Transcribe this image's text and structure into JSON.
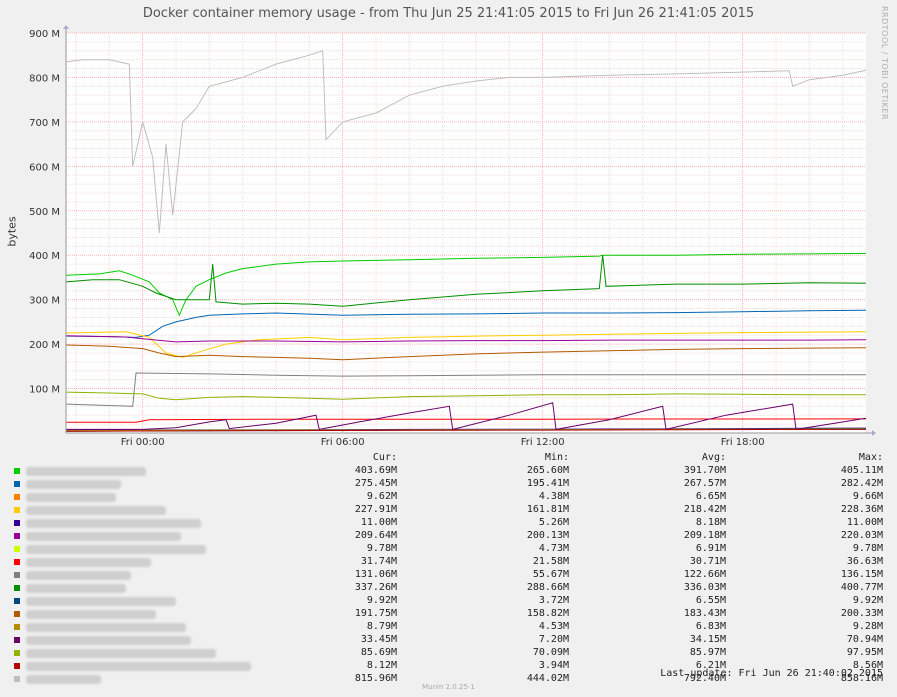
{
  "title": "Docker container memory usage - from Thu Jun 25 21:41:05 2015 to Fri Jun 26 21:41:05 2015",
  "watermark": "RRDTOOL / TOBI OETIKER",
  "footer": "Munin 2.0.25-1",
  "last_update": "Last update:  Fri Jun 26 21:40:02 2015",
  "legend_headers": {
    "cur": "Cur:",
    "min": "Min:",
    "avg": "Avg:",
    "max": "Max:"
  },
  "chart_data": {
    "type": "line",
    "title": "Docker container memory usage - from Thu Jun 25 21:41:05 2015 to Fri Jun 26 21:41:05 2015",
    "xlabel": "",
    "ylabel": "bytes",
    "y_unit": "M",
    "ylim": [
      0,
      900
    ],
    "x_range_hours": [
      -2.3,
      21.7
    ],
    "grid": true,
    "x_ticks": [
      {
        "hour": 0,
        "label": "Fri 00:00"
      },
      {
        "hour": 6,
        "label": "Fri 06:00"
      },
      {
        "hour": 12,
        "label": "Fri 12:00"
      },
      {
        "hour": 18,
        "label": "Fri 18:00"
      }
    ],
    "y_ticks": [
      {
        "value": 100,
        "label": "100 M"
      },
      {
        "value": 200,
        "label": "200 M"
      },
      {
        "value": 300,
        "label": "300 M"
      },
      {
        "value": 400,
        "label": "400 M"
      },
      {
        "value": 500,
        "label": "500 M"
      },
      {
        "value": 600,
        "label": "600 M"
      },
      {
        "value": 700,
        "label": "700 M"
      },
      {
        "value": 800,
        "label": "800 M"
      },
      {
        "value": 900,
        "label": "900 M"
      }
    ],
    "series": [
      {
        "color": "#00cc00",
        "cur": "403.69M",
        "min": "265.60M",
        "avg": "391.70M",
        "max": "405.11M",
        "points": [
          [
            -2.3,
            355
          ],
          [
            -1.3,
            358
          ],
          [
            -0.7,
            365
          ],
          [
            -0.3,
            355
          ],
          [
            0.2,
            340
          ],
          [
            0.5,
            315
          ],
          [
            0.9,
            300
          ],
          [
            1.1,
            265
          ],
          [
            1.3,
            300
          ],
          [
            1.6,
            330
          ],
          [
            2.0,
            345
          ],
          [
            2.5,
            360
          ],
          [
            3,
            370
          ],
          [
            4,
            380
          ],
          [
            5,
            385
          ],
          [
            6,
            387
          ],
          [
            8,
            390
          ],
          [
            10,
            393
          ],
          [
            12,
            395
          ],
          [
            13.7,
            398
          ],
          [
            13.8,
            400
          ],
          [
            16,
            400
          ],
          [
            18,
            402
          ],
          [
            20,
            403
          ],
          [
            21.7,
            404
          ]
        ]
      },
      {
        "color": "#0066b3",
        "cur": "275.45M",
        "min": "195.41M",
        "avg": "267.57M",
        "max": "282.42M",
        "points": [
          [
            -2.3,
            218
          ],
          [
            -1,
            217
          ],
          [
            -0.2,
            215
          ],
          [
            0.2,
            220
          ],
          [
            0.6,
            240
          ],
          [
            1,
            250
          ],
          [
            1.6,
            260
          ],
          [
            2,
            265
          ],
          [
            3,
            268
          ],
          [
            4,
            270
          ],
          [
            6,
            265
          ],
          [
            8,
            267
          ],
          [
            10,
            268
          ],
          [
            12,
            270
          ],
          [
            14,
            270
          ],
          [
            16,
            271
          ],
          [
            18,
            273
          ],
          [
            20,
            275
          ],
          [
            21.7,
            276
          ]
        ]
      },
      {
        "color": "#ff8000",
        "cur": "9.62M",
        "min": "4.38M",
        "avg": "6.65M",
        "max": "9.66M",
        "points": [
          [
            -2.3,
            6
          ],
          [
            0,
            6
          ],
          [
            4,
            6.5
          ],
          [
            8,
            6.8
          ],
          [
            12,
            7
          ],
          [
            16,
            8
          ],
          [
            20,
            9
          ],
          [
            21.7,
            9.6
          ]
        ]
      },
      {
        "color": "#ffcc00",
        "cur": "227.91M",
        "min": "161.81M",
        "avg": "218.42M",
        "max": "228.36M",
        "points": [
          [
            -2.3,
            225
          ],
          [
            -0.5,
            228
          ],
          [
            0.2,
            215
          ],
          [
            0.7,
            180
          ],
          [
            1.2,
            170
          ],
          [
            1.8,
            185
          ],
          [
            2.5,
            200
          ],
          [
            3.5,
            210
          ],
          [
            5,
            215
          ],
          [
            6,
            210
          ],
          [
            8,
            215
          ],
          [
            10,
            218
          ],
          [
            12,
            220
          ],
          [
            14,
            222
          ],
          [
            16,
            224
          ],
          [
            18,
            226
          ],
          [
            20,
            227
          ],
          [
            21.7,
            228
          ]
        ]
      },
      {
        "color": "#330099",
        "cur": "11.00M",
        "min": "5.26M",
        "avg": "8.18M",
        "max": "11.00M",
        "points": [
          [
            -2.3,
            6
          ],
          [
            0,
            7
          ],
          [
            4,
            7.5
          ],
          [
            8,
            8
          ],
          [
            12,
            8.5
          ],
          [
            16,
            9.5
          ],
          [
            20,
            10.5
          ],
          [
            21.7,
            11
          ]
        ]
      },
      {
        "color": "#990099",
        "cur": "209.64M",
        "min": "200.13M",
        "avg": "209.18M",
        "max": "220.03M",
        "points": [
          [
            -2.3,
            219
          ],
          [
            -0.5,
            216
          ],
          [
            0.3,
            210
          ],
          [
            1,
            205
          ],
          [
            2,
            207
          ],
          [
            4,
            207
          ],
          [
            6,
            205
          ],
          [
            8,
            207
          ],
          [
            10,
            208
          ],
          [
            12,
            208
          ],
          [
            14,
            209
          ],
          [
            16,
            209
          ],
          [
            18,
            209
          ],
          [
            20,
            209
          ],
          [
            21.7,
            210
          ]
        ]
      },
      {
        "color": "#ccff00",
        "cur": "9.78M",
        "min": "4.73M",
        "avg": "6.91M",
        "max": "9.78M",
        "points": [
          [
            -2.3,
            5
          ],
          [
            0,
            6
          ],
          [
            4,
            6.5
          ],
          [
            8,
            7
          ],
          [
            12,
            7.5
          ],
          [
            16,
            8.5
          ],
          [
            20,
            9.5
          ],
          [
            21.7,
            9.8
          ]
        ]
      },
      {
        "color": "#ff0000",
        "cur": "31.74M",
        "min": "21.58M",
        "avg": "30.71M",
        "max": "36.63M",
        "points": [
          [
            -2.3,
            24
          ],
          [
            -0.2,
            24
          ],
          [
            0.2,
            30
          ],
          [
            4,
            31
          ],
          [
            8,
            31
          ],
          [
            12,
            31
          ],
          [
            16,
            31.5
          ],
          [
            21.7,
            31.7
          ]
        ]
      },
      {
        "color": "#808080",
        "cur": "131.06M",
        "min": "55.67M",
        "avg": "122.66M",
        "max": "136.15M",
        "points": [
          [
            -2.3,
            65
          ],
          [
            -0.3,
            60
          ],
          [
            -0.2,
            135
          ],
          [
            2,
            133
          ],
          [
            4,
            130
          ],
          [
            6,
            128
          ],
          [
            8,
            129
          ],
          [
            10,
            130
          ],
          [
            12,
            131
          ],
          [
            14,
            131
          ],
          [
            16,
            131
          ],
          [
            18,
            131
          ],
          [
            21.7,
            131
          ]
        ]
      },
      {
        "color": "#008f00",
        "cur": "337.26M",
        "min": "288.66M",
        "avg": "336.03M",
        "max": "400.77M",
        "points": [
          [
            -2.3,
            340
          ],
          [
            -1.5,
            345
          ],
          [
            -0.7,
            345
          ],
          [
            0,
            330
          ],
          [
            0.4,
            315
          ],
          [
            1,
            300
          ],
          [
            2,
            300
          ],
          [
            2.1,
            380
          ],
          [
            2.2,
            295
          ],
          [
            3,
            290
          ],
          [
            4,
            292
          ],
          [
            5,
            290
          ],
          [
            6,
            285
          ],
          [
            8,
            300
          ],
          [
            10,
            312
          ],
          [
            12,
            320
          ],
          [
            13.7,
            325
          ],
          [
            13.8,
            400
          ],
          [
            13.9,
            330
          ],
          [
            16,
            335
          ],
          [
            18,
            335
          ],
          [
            20,
            338
          ],
          [
            21.7,
            337
          ]
        ]
      },
      {
        "color": "#00487d",
        "cur": "9.92M",
        "min": "3.72M",
        "avg": "6.55M",
        "max": "9.92M",
        "points": [
          [
            -2.3,
            4
          ],
          [
            0,
            4.5
          ],
          [
            4,
            5.5
          ],
          [
            8,
            6.5
          ],
          [
            12,
            7
          ],
          [
            16,
            8
          ],
          [
            20,
            9.5
          ],
          [
            21.7,
            9.9
          ]
        ]
      },
      {
        "color": "#b35a00",
        "cur": "191.75M",
        "min": "158.82M",
        "avg": "183.43M",
        "max": "200.33M",
        "points": [
          [
            -2.3,
            198
          ],
          [
            -1,
            195
          ],
          [
            0,
            190
          ],
          [
            0.5,
            180
          ],
          [
            1,
            172
          ],
          [
            2,
            175
          ],
          [
            3,
            172
          ],
          [
            4,
            170
          ],
          [
            5,
            168
          ],
          [
            6,
            165
          ],
          [
            8,
            172
          ],
          [
            10,
            178
          ],
          [
            12,
            182
          ],
          [
            14,
            185
          ],
          [
            16,
            188
          ],
          [
            18,
            190
          ],
          [
            20,
            191
          ],
          [
            21.7,
            192
          ]
        ]
      },
      {
        "color": "#b38f00",
        "cur": "8.79M",
        "min": "4.53M",
        "avg": "6.83M",
        "max": "9.28M",
        "points": [
          [
            -2.3,
            5
          ],
          [
            0,
            5.5
          ],
          [
            4,
            6
          ],
          [
            8,
            6.5
          ],
          [
            12,
            7
          ],
          [
            16,
            8
          ],
          [
            20,
            8.5
          ],
          [
            21.7,
            8.8
          ]
        ]
      },
      {
        "color": "#6b006b",
        "cur": "33.45M",
        "min": "7.20M",
        "avg": "34.15M",
        "max": "70.94M",
        "points": [
          [
            -2.3,
            8
          ],
          [
            0,
            8
          ],
          [
            1,
            12
          ],
          [
            2,
            25
          ],
          [
            2.5,
            30
          ],
          [
            2.6,
            10
          ],
          [
            4,
            22
          ],
          [
            5.2,
            40
          ],
          [
            5.3,
            8
          ],
          [
            6.5,
            25
          ],
          [
            8,
            45
          ],
          [
            9.2,
            60
          ],
          [
            9.3,
            8
          ],
          [
            11,
            40
          ],
          [
            12.3,
            68
          ],
          [
            12.4,
            8
          ],
          [
            14,
            30
          ],
          [
            15.6,
            60
          ],
          [
            15.7,
            8
          ],
          [
            17.5,
            40
          ],
          [
            19.5,
            65
          ],
          [
            19.6,
            8
          ],
          [
            21.7,
            33
          ]
        ]
      },
      {
        "color": "#8fb300",
        "cur": "85.69M",
        "min": "70.09M",
        "avg": "85.97M",
        "max": "97.95M",
        "points": [
          [
            -2.3,
            92
          ],
          [
            -1,
            90
          ],
          [
            0,
            88
          ],
          [
            0.5,
            78
          ],
          [
            1,
            75
          ],
          [
            2,
            80
          ],
          [
            3,
            82
          ],
          [
            4,
            80
          ],
          [
            5,
            78
          ],
          [
            6,
            76
          ],
          [
            8,
            82
          ],
          [
            10,
            84
          ],
          [
            12,
            86
          ],
          [
            14,
            86
          ],
          [
            16,
            88
          ],
          [
            18,
            87
          ],
          [
            20,
            86
          ],
          [
            21.7,
            86
          ]
        ]
      },
      {
        "color": "#b30000",
        "cur": "8.12M",
        "min": "3.94M",
        "avg": "6.21M",
        "max": "8.56M",
        "points": [
          [
            -2.3,
            4
          ],
          [
            0,
            4.5
          ],
          [
            4,
            5.5
          ],
          [
            8,
            6
          ],
          [
            12,
            6.5
          ],
          [
            16,
            7.5
          ],
          [
            20,
            8
          ],
          [
            21.7,
            8.1
          ]
        ]
      },
      {
        "color": "#bebebe",
        "cur": "815.96M",
        "min": "444.02M",
        "avg": "792.40M",
        "max": "858.16M",
        "points": [
          [
            -2.3,
            835
          ],
          [
            -1.8,
            840
          ],
          [
            -1.0,
            840
          ],
          [
            -0.4,
            830
          ],
          [
            -0.3,
            600
          ],
          [
            0,
            700
          ],
          [
            0.3,
            620
          ],
          [
            0.5,
            450
          ],
          [
            0.7,
            650
          ],
          [
            0.9,
            490
          ],
          [
            1.2,
            700
          ],
          [
            1.6,
            730
          ],
          [
            2,
            780
          ],
          [
            2.5,
            790
          ],
          [
            3,
            800
          ],
          [
            4,
            830
          ],
          [
            5,
            850
          ],
          [
            5.4,
            860
          ],
          [
            5.5,
            660
          ],
          [
            6,
            700
          ],
          [
            7,
            720
          ],
          [
            8,
            760
          ],
          [
            9,
            780
          ],
          [
            10,
            792
          ],
          [
            11,
            800
          ],
          [
            12,
            800
          ],
          [
            14,
            805
          ],
          [
            16,
            808
          ],
          [
            18,
            812
          ],
          [
            19.4,
            815
          ],
          [
            19.5,
            780
          ],
          [
            20,
            795
          ],
          [
            21,
            805
          ],
          [
            21.7,
            816
          ]
        ]
      }
    ]
  }
}
